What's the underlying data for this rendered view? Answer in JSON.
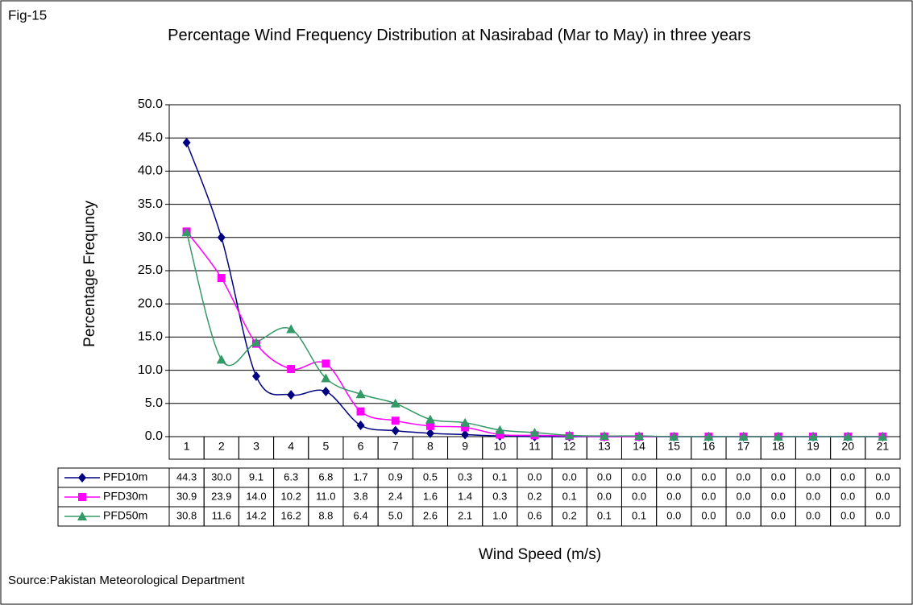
{
  "chart_data": {
    "type": "line",
    "figure_label": "Fig-15",
    "title": "Percentage Wind Frequency Distribution at Nasirabad (Mar to May) in three years",
    "y_label": "Percentage Frequncy",
    "x_label": "Wind Speed (m/s)",
    "source": "Source:Pakistan Meteorological Department",
    "categories": [
      "1",
      "2",
      "3",
      "4",
      "5",
      "6",
      "7",
      "8",
      "9",
      "10",
      "11",
      "12",
      "13",
      "14",
      "15",
      "16",
      "17",
      "18",
      "19",
      "20",
      "21"
    ],
    "ylim": [
      0,
      50
    ],
    "yticks": [
      {
        "value": 0,
        "label": "0.0"
      },
      {
        "value": 5,
        "label": "5.0"
      },
      {
        "value": 10,
        "label": "10.0"
      },
      {
        "value": 15,
        "label": "15.0"
      },
      {
        "value": 20,
        "label": "20.0"
      },
      {
        "value": 25,
        "label": "25.0"
      },
      {
        "value": 30,
        "label": "30.0"
      },
      {
        "value": 35,
        "label": "35.0"
      },
      {
        "value": 40,
        "label": "40.0"
      },
      {
        "value": 45,
        "label": "45.0"
      },
      {
        "value": 50,
        "label": "50.0"
      }
    ],
    "grid": true,
    "smooth": true,
    "data_table": true,
    "series": [
      {
        "name": "PFD10m",
        "color": "#000080",
        "marker": "diamond",
        "values": [
          44.3,
          30,
          9.1,
          6.3,
          6.8,
          1.7,
          0.9,
          0.5,
          0.3,
          0.1,
          0,
          0,
          0,
          0,
          0,
          0,
          0,
          0,
          0,
          0,
          0
        ],
        "value_labels": [
          "44.3",
          "30.0",
          "9.1",
          "6.3",
          "6.8",
          "1.7",
          "0.9",
          "0.5",
          "0.3",
          "0.1",
          "0.0",
          "0.0",
          "0.0",
          "0.0",
          "0.0",
          "0.0",
          "0.0",
          "0.0",
          "0.0",
          "0.0",
          "0.0"
        ]
      },
      {
        "name": "PFD30m",
        "color": "#ff00ff",
        "marker": "square",
        "values": [
          30.9,
          23.9,
          14,
          10.2,
          11,
          3.8,
          2.4,
          1.6,
          1.4,
          0.3,
          0.2,
          0.1,
          0,
          0,
          0,
          0,
          0,
          0,
          0,
          0,
          0
        ],
        "value_labels": [
          "30.9",
          "23.9",
          "14.0",
          "10.2",
          "11.0",
          "3.8",
          "2.4",
          "1.6",
          "1.4",
          "0.3",
          "0.2",
          "0.1",
          "0.0",
          "0.0",
          "0.0",
          "0.0",
          "0.0",
          "0.0",
          "0.0",
          "0.0",
          "0.0"
        ]
      },
      {
        "name": "PFD50m",
        "color": "#339966",
        "marker": "triangle",
        "values": [
          30.8,
          11.6,
          14.2,
          16.2,
          8.8,
          6.4,
          5,
          2.6,
          2.1,
          1,
          0.6,
          0.2,
          0.1,
          0.1,
          0,
          0,
          0,
          0,
          0,
          0,
          0
        ],
        "value_labels": [
          "30.8",
          "11.6",
          "14.2",
          "16.2",
          "8.8",
          "6.4",
          "5.0",
          "2.6",
          "2.1",
          "1.0",
          "0.6",
          "0.2",
          "0.1",
          "0.1",
          "0.0",
          "0.0",
          "0.0",
          "0.0",
          "0.0",
          "0.0",
          "0.0"
        ]
      }
    ]
  }
}
